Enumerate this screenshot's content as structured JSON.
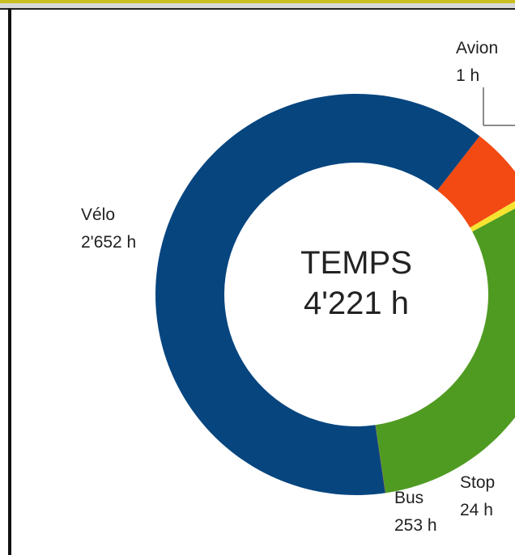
{
  "chart_data": {
    "type": "donut",
    "title": "TEMPS",
    "total": "4'221 h",
    "slices": [
      {
        "name": "Vélo",
        "value": 2652,
        "value_label": "2'652 h",
        "color": "#07457f"
      },
      {
        "name": "Avion",
        "value": 1,
        "value_label": "1 h",
        "color": "#8a1030"
      },
      {
        "name": "",
        "value": 1291,
        "value_label": "",
        "color": "#4f9b22"
      },
      {
        "name": "Stop",
        "value": 24,
        "value_label": "24 h",
        "color": "#f5e330"
      },
      {
        "name": "Bus",
        "value": 253,
        "value_label": "253 h",
        "color": "#f24a12"
      }
    ]
  }
}
